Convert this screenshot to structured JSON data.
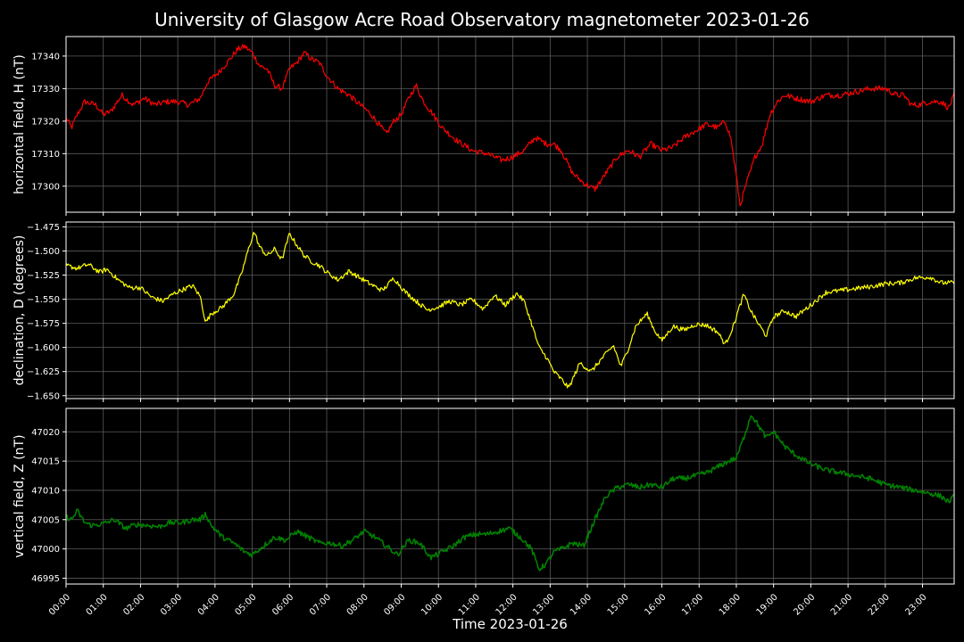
{
  "title": "University of Glasgow Acre Road Observatory magnetometer 2023-01-26",
  "colors": {
    "background": "#000000",
    "grid": "#5a5a5a",
    "axes": "#ffffff"
  },
  "chart_data": [
    {
      "type": "line",
      "ylabel": "horizontal field, H (nT)",
      "ylim": [
        17292,
        17346
      ],
      "yticks": [
        17300,
        17310,
        17320,
        17330,
        17340
      ],
      "ytick_labels": [
        "17300",
        "17310",
        "17320",
        "17330",
        "17340"
      ],
      "xlim": [
        0,
        23.85
      ],
      "grid": true,
      "series": [
        {
          "color": "#ff0000",
          "noise": 0.9,
          "x": [
            0,
            0.15,
            0.3,
            0.5,
            0.8,
            1.0,
            1.2,
            1.5,
            1.8,
            2.1,
            2.4,
            2.7,
            3.0,
            3.3,
            3.6,
            3.8,
            4.1,
            4.4,
            4.6,
            4.8,
            5.0,
            5.2,
            5.4,
            5.6,
            5.8,
            6.0,
            6.2,
            6.4,
            6.6,
            6.8,
            7.0,
            7.3,
            7.6,
            7.9,
            8.2,
            8.4,
            8.6,
            8.8,
            9.0,
            9.2,
            9.4,
            9.6,
            9.8,
            10.1,
            10.5,
            10.9,
            11.3,
            11.7,
            12.0,
            12.3,
            12.6,
            12.9,
            13.1,
            13.3,
            13.6,
            13.9,
            14.2,
            14.5,
            14.8,
            15.1,
            15.4,
            15.7,
            16.0,
            16.3,
            16.6,
            16.9,
            17.2,
            17.5,
            17.7,
            17.85,
            18.0,
            18.1,
            18.25,
            18.5,
            18.7,
            18.9,
            19.1,
            19.3,
            19.6,
            20.0,
            20.4,
            20.8,
            21.2,
            21.6,
            22.0,
            22.3,
            22.5,
            22.7,
            22.9,
            23.2,
            23.5,
            23.7,
            23.85
          ],
          "y": [
            17321,
            17318,
            17322,
            17326,
            17325,
            17322,
            17323,
            17328,
            17325,
            17327,
            17325,
            17326,
            17326,
            17325,
            17327,
            17332,
            17335,
            17339,
            17342,
            17343,
            17341,
            17337,
            17336,
            17331,
            17330,
            17336,
            17338,
            17341,
            17339,
            17338,
            17334,
            17330,
            17328,
            17325,
            17322,
            17319,
            17316,
            17320,
            17322,
            17327,
            17331,
            17326,
            17323,
            17318,
            17314,
            17311,
            17310,
            17308,
            17309,
            17311,
            17315,
            17313,
            17313,
            17311,
            17304,
            17301,
            17299,
            17304,
            17309,
            17311,
            17309,
            17313,
            17311,
            17312,
            17315,
            17317,
            17319,
            17318,
            17320,
            17315,
            17303,
            17294,
            17300,
            17309,
            17313,
            17322,
            17326,
            17328,
            17327,
            17326,
            17328,
            17328,
            17329,
            17330,
            17330,
            17328,
            17328,
            17325,
            17325,
            17326,
            17326,
            17324,
            17328
          ]
        }
      ]
    },
    {
      "type": "line",
      "ylabel": "declination, D (degrees)",
      "ylim": [
        -1.653,
        -1.47
      ],
      "yticks": [
        -1.65,
        -1.625,
        -1.6,
        -1.575,
        -1.55,
        -1.525,
        -1.5,
        -1.475
      ],
      "ytick_labels": [
        "−1.650",
        "−1.625",
        "−1.600",
        "−1.575",
        "−1.550",
        "−1.525",
        "−1.500",
        "−1.475"
      ],
      "xlim": [
        0,
        23.85
      ],
      "grid": true,
      "series": [
        {
          "color": "#ffff00",
          "noise": 0.0025,
          "x": [
            0,
            0.3,
            0.6,
            0.9,
            1.1,
            1.4,
            1.7,
            2.0,
            2.3,
            2.6,
            2.9,
            3.2,
            3.4,
            3.6,
            3.75,
            3.9,
            4.2,
            4.5,
            4.7,
            4.9,
            5.05,
            5.2,
            5.4,
            5.6,
            5.8,
            6.0,
            6.2,
            6.4,
            6.6,
            6.8,
            7.0,
            7.3,
            7.6,
            7.9,
            8.2,
            8.5,
            8.8,
            9.1,
            9.4,
            9.7,
            10.0,
            10.3,
            10.6,
            10.9,
            11.2,
            11.5,
            11.8,
            12.1,
            12.3,
            12.5,
            12.7,
            12.9,
            13.1,
            13.3,
            13.5,
            13.8,
            14.1,
            14.4,
            14.7,
            14.9,
            15.1,
            15.3,
            15.6,
            15.8,
            16.0,
            16.3,
            16.6,
            16.9,
            17.2,
            17.5,
            17.7,
            17.9,
            18.05,
            18.2,
            18.4,
            18.6,
            18.8,
            19.0,
            19.3,
            19.6,
            20.0,
            20.4,
            20.8,
            21.2,
            21.6,
            22.0,
            22.4,
            22.8,
            23.2,
            23.5,
            23.85
          ],
          "y": [
            -1.515,
            -1.518,
            -1.514,
            -1.522,
            -1.519,
            -1.53,
            -1.538,
            -1.538,
            -1.548,
            -1.552,
            -1.544,
            -1.539,
            -1.536,
            -1.547,
            -1.574,
            -1.565,
            -1.558,
            -1.545,
            -1.525,
            -1.498,
            -1.48,
            -1.496,
            -1.505,
            -1.498,
            -1.509,
            -1.482,
            -1.494,
            -1.505,
            -1.511,
            -1.515,
            -1.522,
            -1.53,
            -1.521,
            -1.528,
            -1.535,
            -1.541,
            -1.528,
            -1.542,
            -1.552,
            -1.561,
            -1.558,
            -1.552,
            -1.556,
            -1.55,
            -1.56,
            -1.546,
            -1.556,
            -1.544,
            -1.552,
            -1.575,
            -1.6,
            -1.61,
            -1.625,
            -1.633,
            -1.642,
            -1.616,
            -1.625,
            -1.611,
            -1.598,
            -1.62,
            -1.601,
            -1.578,
            -1.565,
            -1.582,
            -1.593,
            -1.578,
            -1.582,
            -1.576,
            -1.577,
            -1.584,
            -1.597,
            -1.58,
            -1.562,
            -1.545,
            -1.563,
            -1.576,
            -1.588,
            -1.568,
            -1.562,
            -1.568,
            -1.556,
            -1.543,
            -1.541,
            -1.539,
            -1.537,
            -1.534,
            -1.533,
            -1.528,
            -1.527,
            -1.533,
            -1.533
          ]
        }
      ]
    },
    {
      "type": "line",
      "ylabel": "vertical field, Z (nT)",
      "ylim": [
        46994,
        47024
      ],
      "yticks": [
        46995,
        47000,
        47005,
        47010,
        47015,
        47020
      ],
      "ytick_labels": [
        "46995",
        "47000",
        "47005",
        "47010",
        "47015",
        "47020"
      ],
      "xlim": [
        0,
        23.85
      ],
      "grid": true,
      "series": [
        {
          "color": "#008000",
          "noise": 0.45,
          "x": [
            0,
            0.15,
            0.3,
            0.5,
            0.7,
            1.0,
            1.3,
            1.6,
            1.9,
            2.2,
            2.5,
            2.8,
            3.1,
            3.4,
            3.6,
            3.75,
            3.9,
            4.2,
            4.5,
            4.8,
            5.0,
            5.3,
            5.6,
            5.9,
            6.2,
            6.5,
            6.8,
            7.1,
            7.4,
            7.7,
            8.0,
            8.3,
            8.6,
            8.9,
            9.2,
            9.5,
            9.8,
            10.1,
            10.4,
            10.7,
            11.0,
            11.3,
            11.6,
            11.9,
            12.2,
            12.5,
            12.7,
            12.9,
            13.1,
            13.3,
            13.6,
            13.9,
            14.2,
            14.5,
            14.8,
            15.1,
            15.4,
            15.7,
            16.0,
            16.3,
            16.6,
            16.9,
            17.2,
            17.5,
            17.8,
            18.0,
            18.2,
            18.4,
            18.6,
            18.8,
            19.0,
            19.3,
            19.6,
            20.0,
            20.4,
            20.8,
            21.2,
            21.6,
            22.0,
            22.4,
            22.8,
            23.2,
            23.5,
            23.7,
            23.85
          ],
          "y": [
            47005.5,
            47005,
            47006.5,
            47004.5,
            47004,
            47004.3,
            47005,
            47003.5,
            47004.2,
            47004,
            47003.8,
            47004.5,
            47004.5,
            47005,
            47005,
            47006,
            47004,
            47002,
            47001,
            46999.5,
            46999,
            47000.5,
            47002,
            47001.5,
            47003,
            47002,
            47001,
            47001,
            47000.5,
            47001.5,
            47003,
            47002,
            47000.5,
            46999,
            47001.5,
            47001,
            46998.5,
            46999.5,
            47000.5,
            47002,
            47002.5,
            47002.5,
            47003,
            47003.5,
            47002,
            47000,
            46996.5,
            46997.5,
            46999.5,
            47000,
            47001,
            47000.5,
            47005,
            47009,
            47010.5,
            47011,
            47010.5,
            47011,
            47010.5,
            47012,
            47012,
            47012.5,
            47013,
            47014,
            47015,
            47015.5,
            47019,
            47023,
            47021,
            47019,
            47020,
            47017.5,
            47016,
            47014.5,
            47013.5,
            47013,
            47012.5,
            47012,
            47011,
            47010.5,
            47010,
            47009.5,
            47009,
            47008,
            47009
          ]
        }
      ]
    }
  ],
  "x_axis": {
    "xlabel": "Time 2023-01-26",
    "ticks": [
      0,
      1,
      2,
      3,
      4,
      5,
      6,
      7,
      8,
      9,
      10,
      11,
      12,
      13,
      14,
      15,
      16,
      17,
      18,
      19,
      20,
      21,
      22,
      23
    ],
    "tick_labels": [
      "00:00",
      "01:00",
      "02:00",
      "03:00",
      "04:00",
      "05:00",
      "06:00",
      "07:00",
      "08:00",
      "09:00",
      "10:00",
      "11:00",
      "12:00",
      "13:00",
      "14:00",
      "15:00",
      "16:00",
      "17:00",
      "18:00",
      "19:00",
      "20:00",
      "21:00",
      "22:00",
      "23:00"
    ]
  }
}
